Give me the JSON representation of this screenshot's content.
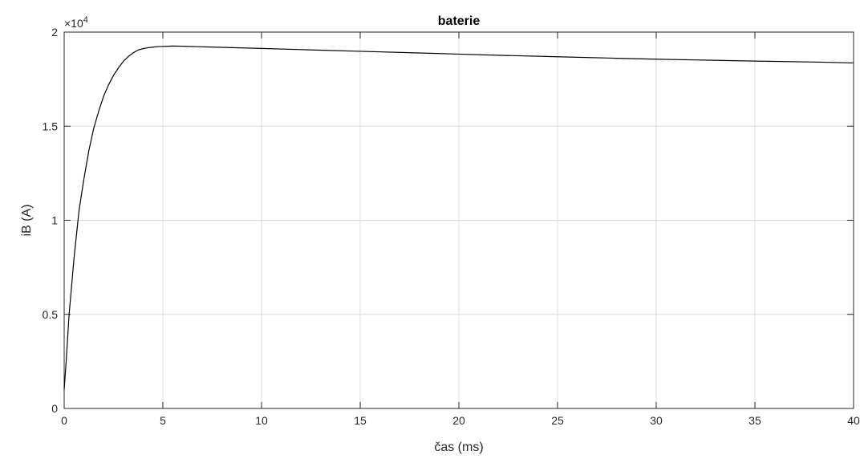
{
  "chart_data": {
    "type": "line",
    "title": "baterie",
    "xlabel": "čas (ms)",
    "ylabel": "iB (A)",
    "y_exponent_label": "×10",
    "y_exponent_power": "4",
    "xlim": [
      0,
      40
    ],
    "ylim": [
      0,
      20000
    ],
    "x_ticks": [
      0,
      5,
      10,
      15,
      20,
      25,
      30,
      35,
      40
    ],
    "x_tick_labels": [
      "0",
      "5",
      "10",
      "15",
      "20",
      "25",
      "30",
      "35",
      "40"
    ],
    "y_ticks": [
      0,
      5000,
      10000,
      15000,
      20000
    ],
    "y_tick_labels": [
      "0",
      "0.5",
      "1",
      "1.5",
      "2"
    ],
    "grid": true,
    "line_color": "#000000",
    "grid_color": "#dcdcdc",
    "series": [
      {
        "x": [
          0,
          0.1,
          0.25,
          0.5,
          0.75,
          1.0,
          1.25,
          1.5,
          1.75,
          2.0,
          2.25,
          2.5,
          2.75,
          3.0,
          3.25,
          3.5,
          3.75,
          4.0,
          4.25,
          4.5,
          4.75,
          5.0,
          5.25,
          5.5,
          6.0,
          7.0,
          8.0,
          10.0,
          12.0,
          15.0,
          18.0,
          20.0,
          22.0,
          25.0,
          28.0,
          30.0,
          32.0,
          35.0,
          38.0,
          40.0
        ],
        "y": [
          1000,
          2500,
          5000,
          8000,
          10500,
          12200,
          13700,
          14900,
          15800,
          16600,
          17200,
          17700,
          18100,
          18450,
          18700,
          18900,
          19050,
          19120,
          19170,
          19200,
          19230,
          19240,
          19250,
          19260,
          19250,
          19220,
          19190,
          19130,
          19070,
          18980,
          18890,
          18830,
          18770,
          18690,
          18610,
          18560,
          18520,
          18460,
          18410,
          18360
        ]
      }
    ]
  }
}
